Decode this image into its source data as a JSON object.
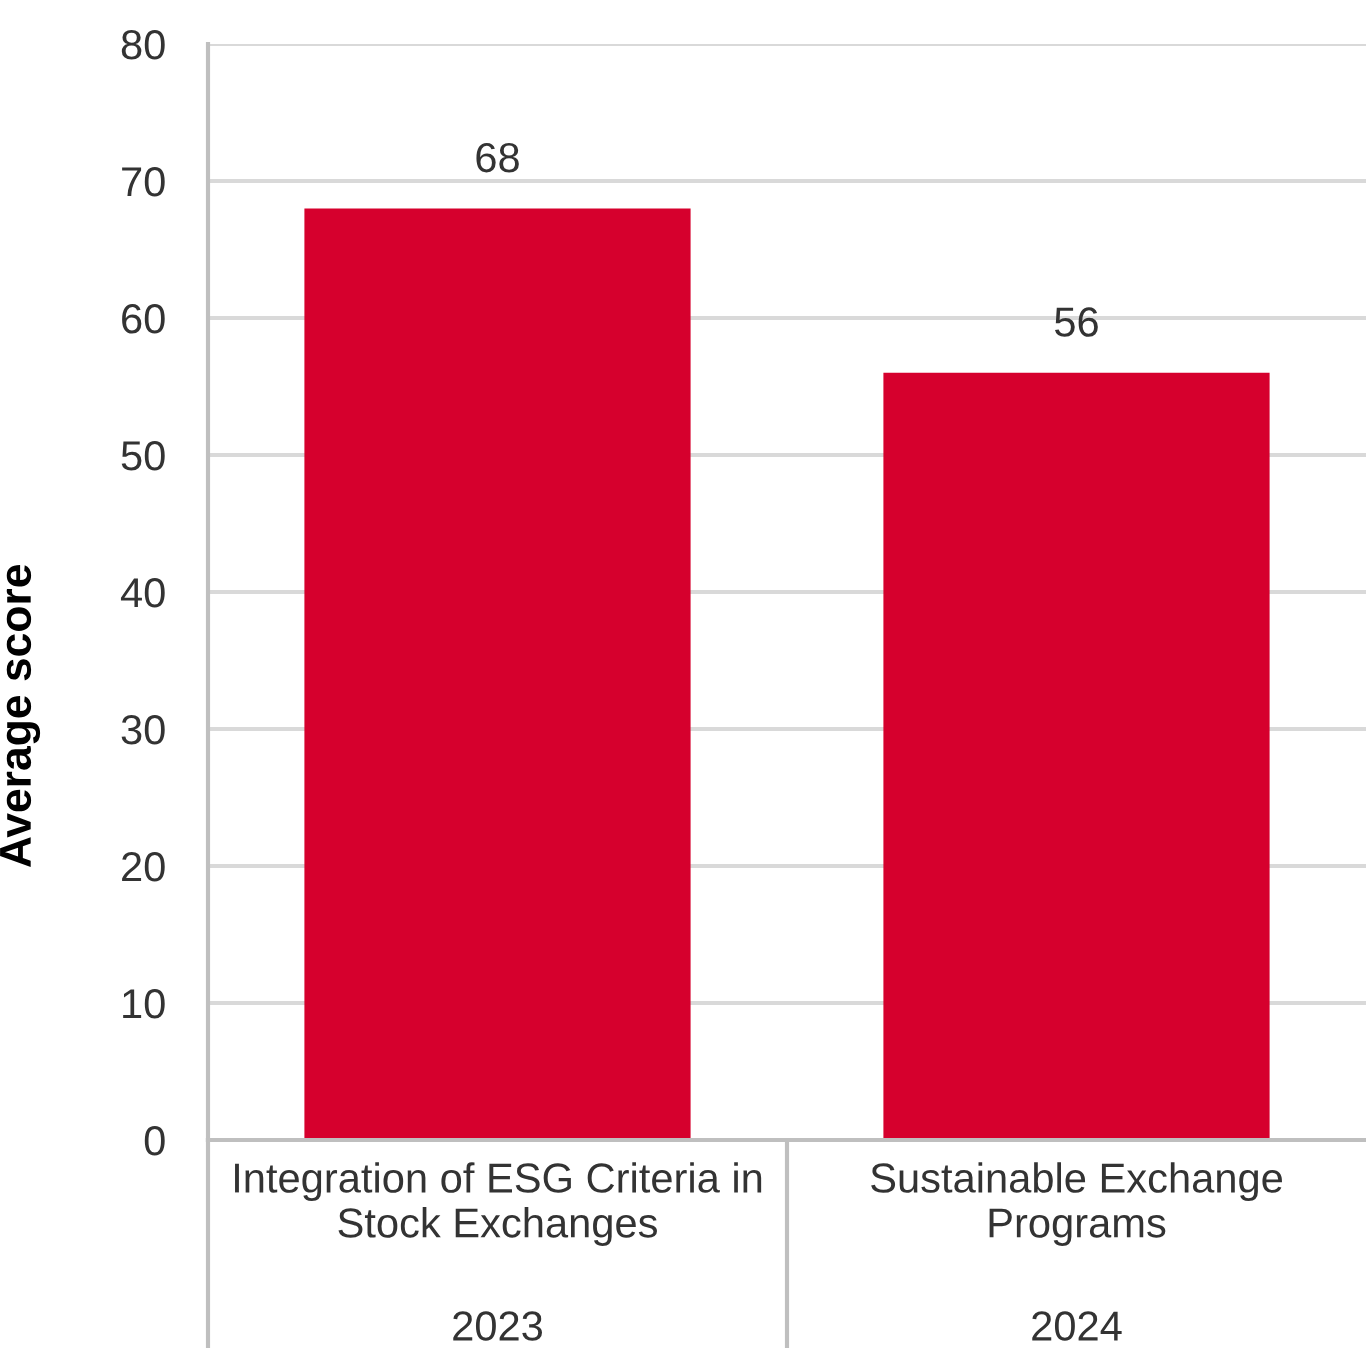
{
  "chart_data": {
    "type": "bar",
    "ylabel": "Average score",
    "categories": [
      "Integration of ESG Criteria in Stock Exchanges",
      "Sustainable Exchange Programs"
    ],
    "values": [
      68,
      56
    ],
    "color": "#d6002d",
    "ylim": [
      0,
      80
    ],
    "yticks": [
      0,
      10,
      20,
      30,
      40,
      50,
      60,
      70,
      80
    ],
    "grid": "y",
    "data_labels": true,
    "annotations": [
      "2023",
      "2024"
    ]
  }
}
